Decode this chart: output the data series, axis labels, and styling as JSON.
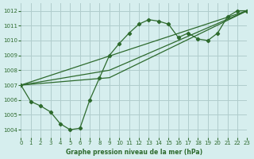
{
  "xlabel": "Graphe pression niveau de la mer (hPa)",
  "xlim": [
    0,
    23
  ],
  "ylim": [
    1003.5,
    1012.5
  ],
  "yticks": [
    1004,
    1005,
    1006,
    1007,
    1008,
    1009,
    1010,
    1011,
    1012
  ],
  "xticks": [
    0,
    1,
    2,
    3,
    4,
    5,
    6,
    7,
    8,
    9,
    10,
    11,
    12,
    13,
    14,
    15,
    16,
    17,
    18,
    19,
    20,
    21,
    22,
    23
  ],
  "bg_color": "#d6eeee",
  "grid_color": "#b0cccc",
  "line_color": "#2d6a2d",
  "line1_x": [
    0,
    1,
    2,
    3,
    4,
    5,
    6,
    7,
    8,
    9,
    10,
    11,
    12,
    13,
    14,
    15,
    16,
    17,
    18,
    19,
    20,
    21,
    22,
    23
  ],
  "line1_y": [
    1007.0,
    1005.9,
    1005.6,
    1005.2,
    1004.4,
    1004.0,
    1004.1,
    1006.0,
    1007.5,
    1009.0,
    1009.8,
    1010.5,
    1011.1,
    1011.4,
    1011.3,
    1011.1,
    1010.2,
    1010.5,
    1010.1,
    1010.0,
    1010.5,
    1011.6,
    1012.0,
    1012.0
  ],
  "line2_x": [
    0,
    23
  ],
  "line2_y": [
    1007.0,
    1012.0
  ],
  "line3_x": [
    0,
    9,
    23
  ],
  "line3_y": [
    1007.0,
    1007.5,
    1012.0
  ],
  "line4_x": [
    0,
    9,
    23
  ],
  "line4_y": [
    1007.0,
    1008.0,
    1012.0
  ]
}
